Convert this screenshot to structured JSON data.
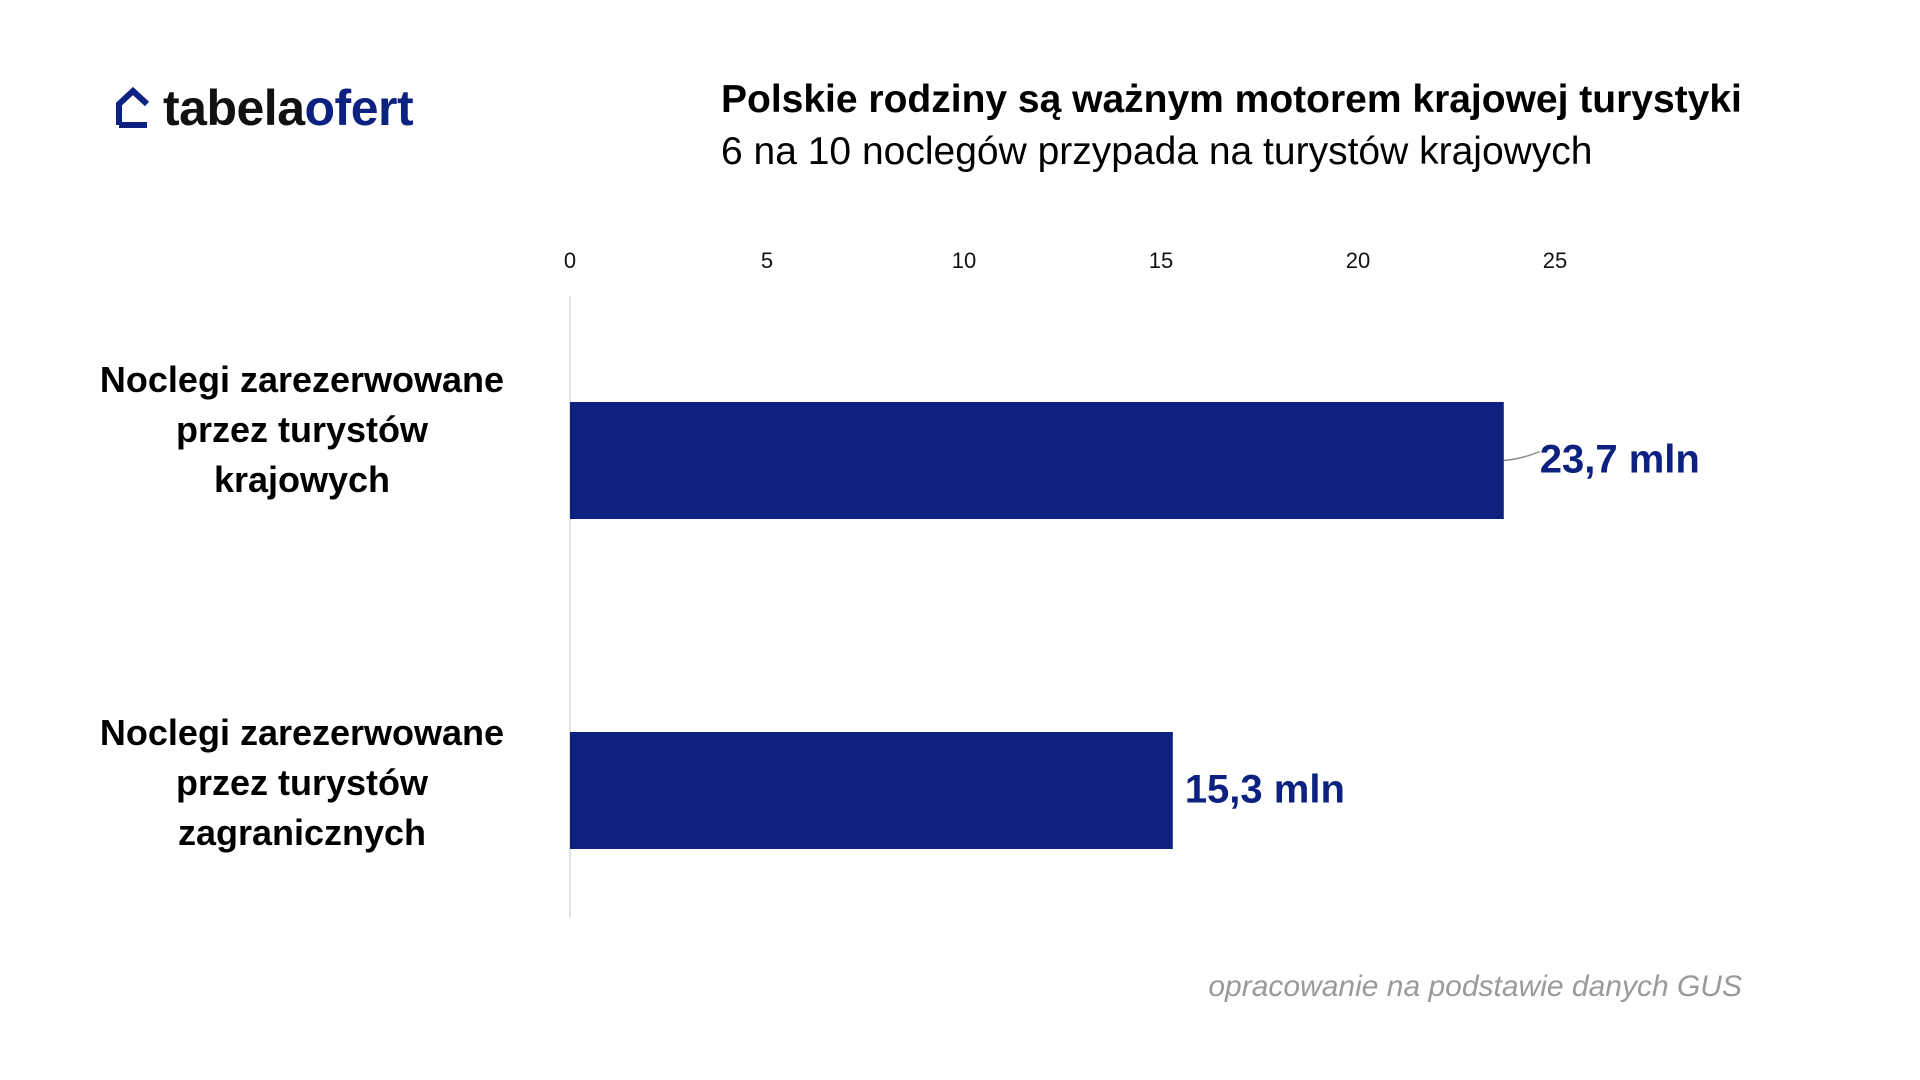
{
  "logo": {
    "part1": "tabela",
    "part2": "ofert",
    "icon": "house-outline-icon"
  },
  "header": {
    "title": "Polskie rodziny są ważnym motorem krajowej turystyki",
    "subtitle": "6 na 10 noclegów przypada na turystów krajowych"
  },
  "footer": {
    "source": "opracowanie na podstawie danych GUS"
  },
  "chart_data": {
    "type": "bar",
    "orientation": "horizontal",
    "categories": [
      "Noclegi zarezerwowane przez turystów krajowych",
      "Noclegi zarezerwowane przez turystów zagranicznych"
    ],
    "category_lines": [
      [
        "Noclegi zarezerwowane",
        "przez turystów",
        "krajowych"
      ],
      [
        "Noclegi zarezerwowane",
        "przez turystów",
        "zagranicznych"
      ]
    ],
    "values": [
      23.7,
      15.3
    ],
    "data_labels": [
      "23,7 mln",
      "15,3 mln"
    ],
    "xticks": [
      "0",
      "5",
      "10",
      "15",
      "20",
      "25"
    ],
    "xlim": [
      0,
      25
    ],
    "axis_position": "top",
    "grid": false,
    "colors": {
      "bar": "#0c2180",
      "label": "#0c2180",
      "axis": "#e2e2e2"
    }
  }
}
